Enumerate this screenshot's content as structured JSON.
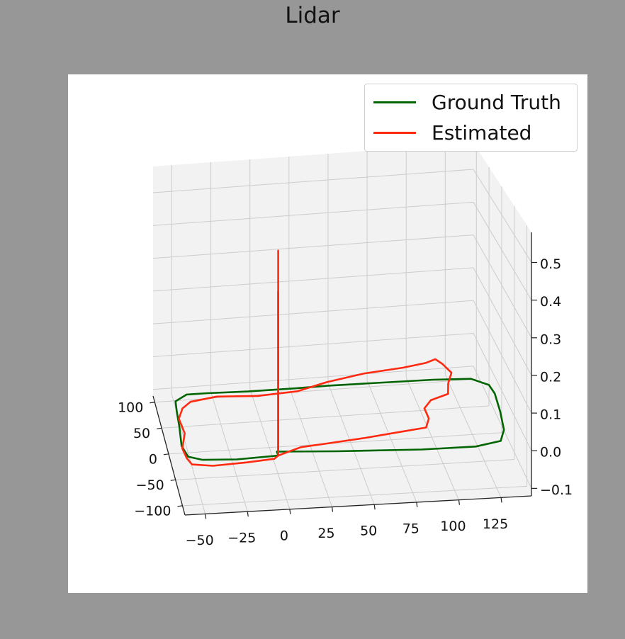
{
  "title": "Lidar",
  "colors": {
    "ground_truth": "#006400",
    "estimated": "#ff2a10",
    "pane_fill": "#f2f2f2",
    "grid": "#cccccc",
    "page_background": "#979797"
  },
  "legend": {
    "placement": "top-right",
    "items": [
      {
        "label": "Ground Truth",
        "color": "#006400"
      },
      {
        "label": "Estimated",
        "color": "#ff2a10"
      }
    ]
  },
  "chart_data": {
    "type": "line",
    "projection": "3d",
    "title": "Lidar",
    "x_ticks": [
      "−50",
      "−25",
      "0",
      "25",
      "50",
      "75",
      "100",
      "125"
    ],
    "y_ticks": [
      "−100",
      "−50",
      "0",
      "50",
      "100"
    ],
    "z_ticks": [
      "−0.1",
      "0.0",
      "0.1",
      "0.2",
      "0.3",
      "0.4",
      "0.5"
    ],
    "xlim": [
      -62,
      143
    ],
    "ylim": [
      -118,
      112
    ],
    "zlim": [
      -0.12,
      0.58
    ],
    "grid": true,
    "series": [
      {
        "name": "Ground Truth",
        "color": "#006400",
        "points": [
          [
            -5,
            -100,
            0.44
          ],
          [
            -5,
            -100,
            0.0
          ],
          [
            -5,
            -92,
            0.0
          ],
          [
            30,
            -98,
            0.0
          ],
          [
            80,
            -104,
            0.0
          ],
          [
            112,
            -104,
            0.0
          ],
          [
            128,
            -96,
            0.0
          ],
          [
            133,
            -75,
            0.0
          ],
          [
            136,
            -40,
            0.0
          ],
          [
            138,
            -5,
            0.0
          ],
          [
            137,
            12,
            0.0
          ],
          [
            128,
            26,
            0.0
          ],
          [
            105,
            29,
            0.0
          ],
          [
            70,
            30,
            0.0
          ],
          [
            40,
            31,
            0.0
          ],
          [
            20,
            30,
            0.0
          ],
          [
            -10,
            30,
            0.0
          ],
          [
            -35,
            32,
            0.0
          ],
          [
            -48,
            32,
            0.0
          ],
          [
            -56,
            20,
            0.0
          ],
          [
            -57,
            0,
            0.0
          ],
          [
            -58,
            -30,
            0.0
          ],
          [
            -60,
            -70,
            0.0
          ],
          [
            -58,
            -92,
            0.0
          ],
          [
            -50,
            -100,
            0.0
          ],
          [
            -30,
            -103,
            0.0
          ],
          [
            -5,
            -100,
            0.0
          ]
        ]
      },
      {
        "name": "Estimated",
        "color": "#ff2a10",
        "points": [
          [
            -5,
            -100,
            0.55
          ],
          [
            -5,
            -100,
            0.0
          ],
          [
            -8,
            -106,
            0.0
          ],
          [
            -25,
            -110,
            0.0
          ],
          [
            -45,
            -113,
            0.0
          ],
          [
            -57,
            -108,
            0.0
          ],
          [
            -59,
            -95,
            0.0
          ],
          [
            -60,
            -75,
            0.0
          ],
          [
            -56,
            -45,
            0.0
          ],
          [
            -57,
            -15,
            0.0
          ],
          [
            -53,
            5,
            0.0
          ],
          [
            -47,
            17,
            0.0
          ],
          [
            -30,
            24,
            0.0
          ],
          [
            -5,
            20,
            0.0
          ],
          [
            20,
            24,
            0.0
          ],
          [
            40,
            38,
            0.0
          ],
          [
            65,
            50,
            0.0
          ],
          [
            90,
            56,
            0.0
          ],
          [
            105,
            62,
            0.0
          ],
          [
            112,
            68,
            0.0
          ],
          [
            115,
            58,
            0.0
          ],
          [
            118,
            40,
            0.0
          ],
          [
            113,
            20,
            0.0
          ],
          [
            110,
            0,
            0.0
          ],
          [
            98,
            -10,
            0.0
          ],
          [
            92,
            -25,
            0.0
          ],
          [
            92,
            -45,
            0.0
          ],
          [
            88,
            -62,
            0.0
          ],
          [
            70,
            -68,
            0.0
          ],
          [
            50,
            -75,
            0.0
          ],
          [
            25,
            -82,
            0.0
          ],
          [
            10,
            -86,
            0.0
          ],
          [
            -2,
            -97,
            0.0
          ],
          [
            -5,
            -100,
            0.0
          ]
        ]
      }
    ]
  }
}
